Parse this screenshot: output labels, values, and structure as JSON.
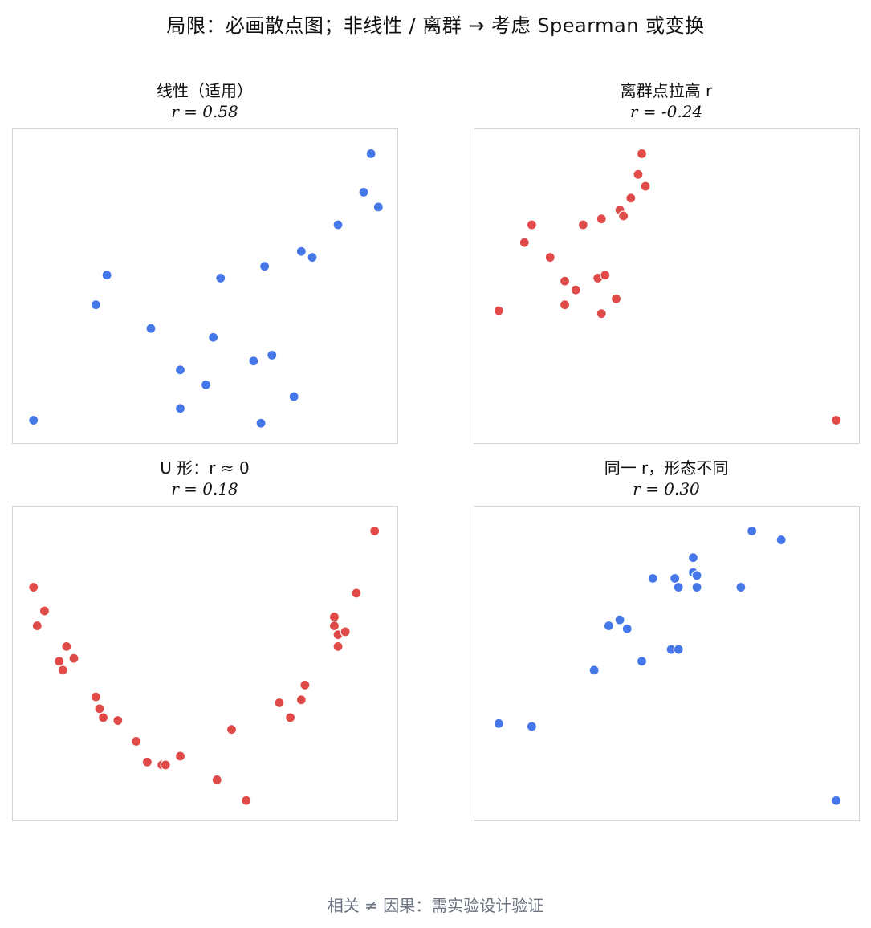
{
  "title": "局限：必画散点图；非线性 / 离群 → 考虑 Spearman 或变换",
  "footer": "相关 ≠ 因果：需实验设计验证",
  "colors": {
    "blue": "#4577e8",
    "red": "#e04a48",
    "frame": "#d4d4d4"
  },
  "chart_data": [
    {
      "type": "scatter",
      "title": "线性（适用）",
      "subtitle": "r = 0.58",
      "color": "#4577e8",
      "xlim": [
        0,
        1
      ],
      "ylim": [
        0,
        1
      ],
      "points": [
        [
          0.03,
          0.05
        ],
        [
          0.2,
          0.44
        ],
        [
          0.23,
          0.54
        ],
        [
          0.35,
          0.36
        ],
        [
          0.43,
          0.22
        ],
        [
          0.43,
          0.09
        ],
        [
          0.5,
          0.17
        ],
        [
          0.52,
          0.33
        ],
        [
          0.54,
          0.53
        ],
        [
          0.63,
          0.25
        ],
        [
          0.65,
          0.04
        ],
        [
          0.66,
          0.57
        ],
        [
          0.68,
          0.27
        ],
        [
          0.74,
          0.13
        ],
        [
          0.76,
          0.62
        ],
        [
          0.79,
          0.6
        ],
        [
          0.86,
          0.71
        ],
        [
          0.93,
          0.82
        ],
        [
          0.95,
          0.95
        ],
        [
          0.97,
          0.77
        ]
      ]
    },
    {
      "type": "scatter",
      "title": "离群点拉高 r",
      "subtitle": "r = -0.24",
      "color": "#e04a48",
      "xlim": [
        0,
        1
      ],
      "ylim": [
        0,
        1
      ],
      "points": [
        [
          0.04,
          0.42
        ],
        [
          0.11,
          0.65
        ],
        [
          0.13,
          0.71
        ],
        [
          0.18,
          0.6
        ],
        [
          0.22,
          0.52
        ],
        [
          0.22,
          0.44
        ],
        [
          0.25,
          0.49
        ],
        [
          0.27,
          0.71
        ],
        [
          0.31,
          0.53
        ],
        [
          0.32,
          0.41
        ],
        [
          0.32,
          0.73
        ],
        [
          0.33,
          0.54
        ],
        [
          0.36,
          0.46
        ],
        [
          0.37,
          0.76
        ],
        [
          0.38,
          0.74
        ],
        [
          0.4,
          0.8
        ],
        [
          0.42,
          0.88
        ],
        [
          0.44,
          0.84
        ],
        [
          0.43,
          0.95
        ],
        [
          0.96,
          0.05
        ]
      ]
    },
    {
      "type": "scatter",
      "title": "U 形：r ≈ 0",
      "subtitle": "r = 0.18",
      "color": "#e04a48",
      "xlim": [
        0,
        1
      ],
      "ylim": [
        0,
        1
      ],
      "points": [
        [
          0.03,
          0.76
        ],
        [
          0.04,
          0.63
        ],
        [
          0.06,
          0.68
        ],
        [
          0.1,
          0.51
        ],
        [
          0.11,
          0.48
        ],
        [
          0.12,
          0.56
        ],
        [
          0.14,
          0.52
        ],
        [
          0.2,
          0.39
        ],
        [
          0.21,
          0.35
        ],
        [
          0.22,
          0.32
        ],
        [
          0.26,
          0.31
        ],
        [
          0.31,
          0.24
        ],
        [
          0.34,
          0.17
        ],
        [
          0.38,
          0.16
        ],
        [
          0.39,
          0.16
        ],
        [
          0.43,
          0.19
        ],
        [
          0.53,
          0.11
        ],
        [
          0.57,
          0.28
        ],
        [
          0.61,
          0.04
        ],
        [
          0.7,
          0.37
        ],
        [
          0.73,
          0.32
        ],
        [
          0.76,
          0.38
        ],
        [
          0.77,
          0.43
        ],
        [
          0.85,
          0.66
        ],
        [
          0.85,
          0.63
        ],
        [
          0.86,
          0.6
        ],
        [
          0.86,
          0.56
        ],
        [
          0.88,
          0.61
        ],
        [
          0.91,
          0.74
        ],
        [
          0.96,
          0.95
        ]
      ]
    },
    {
      "type": "scatter",
      "title": "同一 r，形态不同",
      "subtitle": "r = 0.30",
      "color": "#4577e8",
      "xlim": [
        0,
        1
      ],
      "ylim": [
        0,
        1
      ],
      "points": [
        [
          0.04,
          0.3
        ],
        [
          0.13,
          0.29
        ],
        [
          0.3,
          0.48
        ],
        [
          0.34,
          0.63
        ],
        [
          0.37,
          0.65
        ],
        [
          0.39,
          0.62
        ],
        [
          0.43,
          0.51
        ],
        [
          0.46,
          0.79
        ],
        [
          0.51,
          0.55
        ],
        [
          0.52,
          0.79
        ],
        [
          0.53,
          0.76
        ],
        [
          0.53,
          0.55
        ],
        [
          0.57,
          0.86
        ],
        [
          0.57,
          0.81
        ],
        [
          0.58,
          0.8
        ],
        [
          0.58,
          0.76
        ],
        [
          0.7,
          0.76
        ],
        [
          0.73,
          0.95
        ],
        [
          0.81,
          0.92
        ],
        [
          0.96,
          0.04
        ]
      ]
    }
  ]
}
